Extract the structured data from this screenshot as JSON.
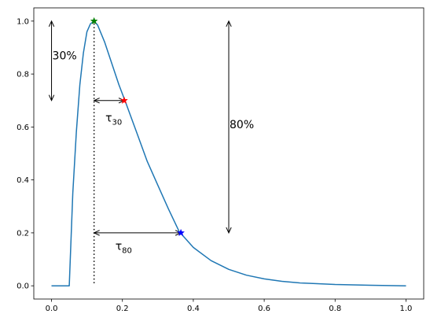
{
  "chart_data": {
    "type": "line",
    "title": "",
    "xlabel": "",
    "ylabel": "",
    "xlim": [
      -0.05,
      1.05
    ],
    "ylim": [
      -0.05,
      1.05
    ],
    "grid": false,
    "xticks": [
      0.0,
      0.2,
      0.4,
      0.6,
      0.8,
      1.0
    ],
    "xtick_labels": [
      "0.0",
      "0.2",
      "0.4",
      "0.6",
      "0.8",
      "1.0"
    ],
    "yticks": [
      0.0,
      0.2,
      0.4,
      0.6,
      0.8,
      1.0
    ],
    "ytick_labels": [
      "0.0",
      "0.2",
      "0.4",
      "0.6",
      "0.8",
      "1.0"
    ],
    "series": [
      {
        "color": "#1f77b4",
        "x": [
          0.0,
          0.05,
          0.06,
          0.07,
          0.08,
          0.09,
          0.1,
          0.11,
          0.12,
          0.13,
          0.15,
          0.17,
          0.19,
          0.21,
          0.24,
          0.27,
          0.3,
          0.33,
          0.36,
          0.4,
          0.45,
          0.5,
          0.55,
          0.6,
          0.65,
          0.7,
          0.8,
          0.9,
          1.0
        ],
        "y": [
          0.0,
          0.0,
          0.35,
          0.58,
          0.76,
          0.88,
          0.96,
          0.99,
          1.0,
          0.985,
          0.92,
          0.84,
          0.76,
          0.69,
          0.58,
          0.47,
          0.38,
          0.29,
          0.205,
          0.145,
          0.095,
          0.062,
          0.04,
          0.026,
          0.017,
          0.011,
          0.005,
          0.002,
          0.0
        ]
      }
    ],
    "markers": [
      {
        "x": 0.12,
        "y": 1.0,
        "color": "#008000"
      },
      {
        "x": 0.205,
        "y": 0.7,
        "color": "#ff0000"
      },
      {
        "x": 0.365,
        "y": 0.2,
        "color": "#0000ff"
      }
    ],
    "vline": {
      "x": 0.12,
      "y0": 0.01,
      "y1": 1.0
    },
    "arrows": {
      "v30": {
        "x": 0.0,
        "y0": 0.7,
        "y1": 1.0
      },
      "v80": {
        "x": 0.5,
        "y0": 0.2,
        "y1": 1.0
      },
      "h30": {
        "y": 0.7,
        "x0": 0.12,
        "x1": 0.205
      },
      "h80": {
        "y": 0.2,
        "x0": 0.12,
        "x1": 0.365
      }
    },
    "annotations": {
      "pct30": {
        "text": "30%",
        "x": 0.0,
        "y": 0.87
      },
      "pct80": {
        "text": "80%",
        "x": 0.5,
        "y": 0.61
      },
      "tau30": {
        "symbol": "τ",
        "sub": "30",
        "x": 0.152,
        "y": 0.635
      },
      "tau80": {
        "symbol": "τ",
        "sub": "80",
        "x": 0.18,
        "y": 0.15
      }
    }
  }
}
